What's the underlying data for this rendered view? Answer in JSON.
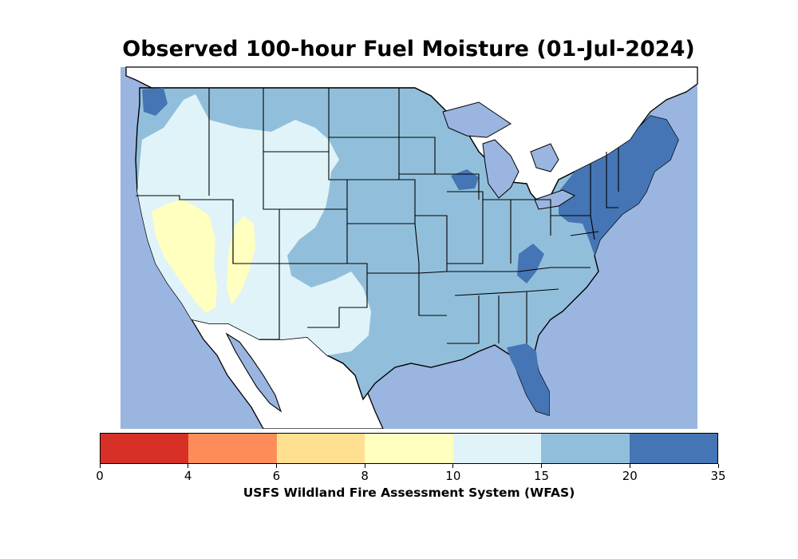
{
  "title": "Observed 100-hour Fuel Moisture (01-Jul-2024)",
  "colorbar": {
    "label": "USFS Wildland Fire Assessment System (WFAS)",
    "ticks": [
      "0",
      "4",
      "6",
      "8",
      "10",
      "15",
      "20",
      "35"
    ],
    "bins": [
      {
        "range": "0-4",
        "color": "#d73027"
      },
      {
        "range": "4-6",
        "color": "#fc8d59"
      },
      {
        "range": "6-8",
        "color": "#fee090"
      },
      {
        "range": "8-10",
        "color": "#ffffbf"
      },
      {
        "range": "10-15",
        "color": "#e0f3f8"
      },
      {
        "range": "15-20",
        "color": "#91bfdb"
      },
      {
        "range": "20-35",
        "color": "#4575b4"
      }
    ]
  },
  "map_colors": {
    "water": "#9ab5e0",
    "land_outside": "#ffffff",
    "moisture_10_15": "#e0f3f8",
    "moisture_15_20": "#91bfdb",
    "moisture_20_35": "#4575b4",
    "moisture_8_10": "#ffffbf"
  }
}
